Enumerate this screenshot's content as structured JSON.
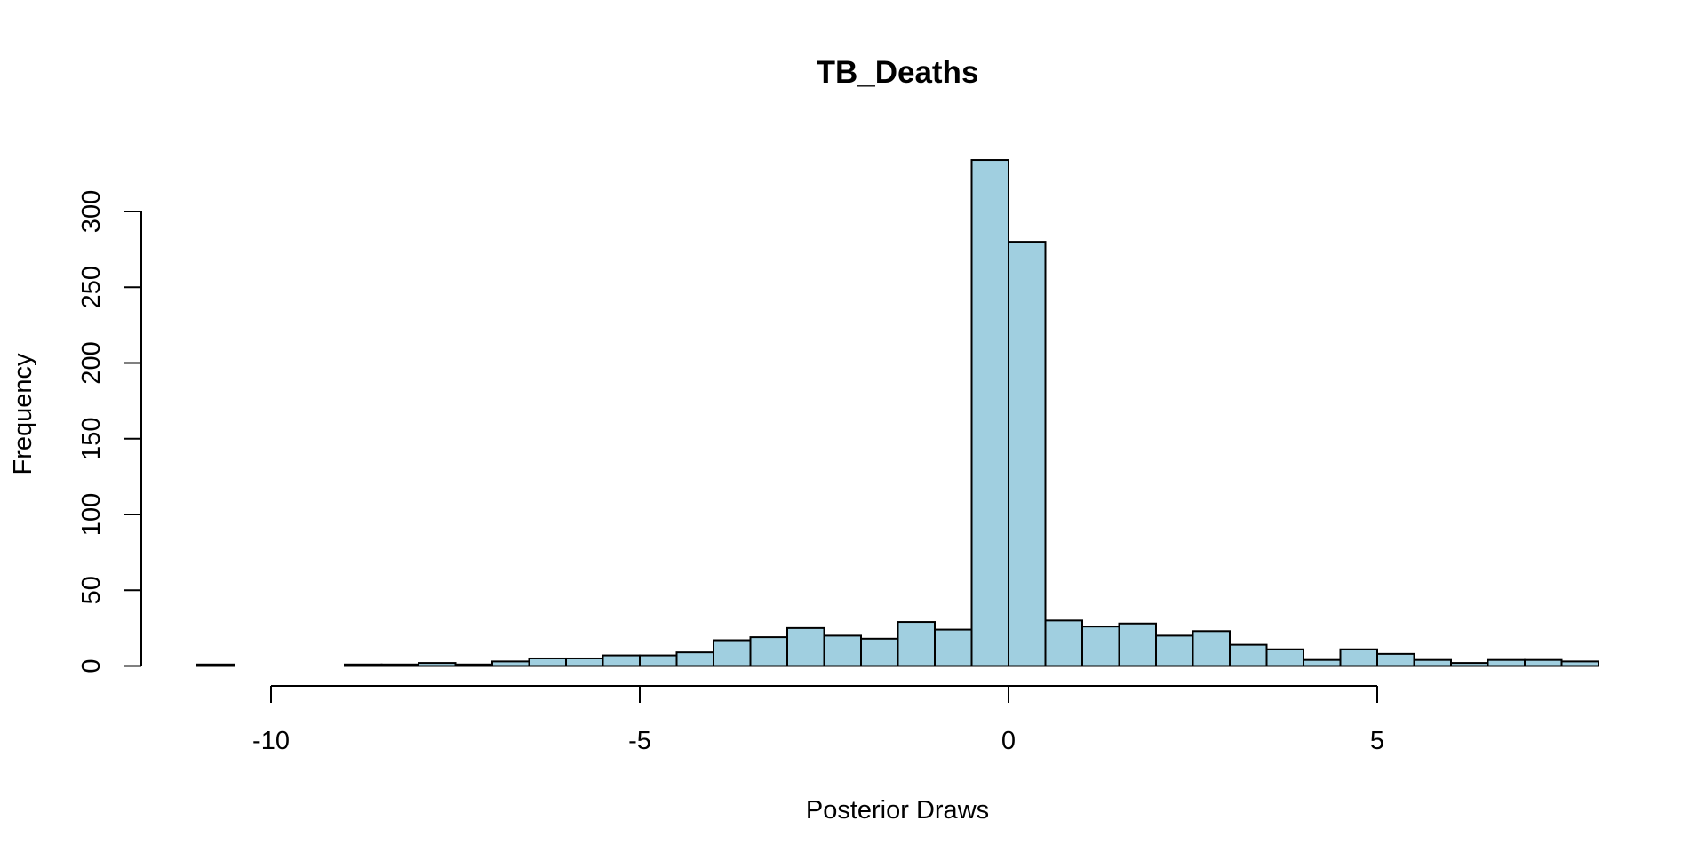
{
  "chart_data": {
    "type": "bar",
    "title": "TB_Deaths",
    "xlabel": "Posterior Draws",
    "ylabel": "Frequency",
    "bin_width": 0.5,
    "x_range": [
      -11,
      8
    ],
    "ylim": [
      0,
      334
    ],
    "x_ticks": [
      -10,
      -5,
      0,
      5
    ],
    "x_tick_labels": [
      "-10",
      "-5",
      "0",
      "5"
    ],
    "y_ticks": [
      0,
      50,
      100,
      150,
      200,
      250,
      300
    ],
    "y_tick_labels": [
      "0",
      "50",
      "100",
      "150",
      "200",
      "250",
      "300"
    ],
    "bin_starts": [
      -11,
      -10.5,
      -10,
      -9.5,
      -9,
      -8.5,
      -8,
      -7.5,
      -7,
      -6.5,
      -6,
      -5.5,
      -5,
      -4.5,
      -4,
      -3.5,
      -3,
      -2.5,
      -2,
      -1.5,
      -1,
      -0.5,
      0,
      0.5,
      1,
      1.5,
      2,
      2.5,
      3,
      3.5,
      4,
      4.5,
      5,
      5.5,
      6,
      6.5,
      7,
      7.5
    ],
    "values": [
      1,
      0,
      0,
      0,
      1,
      1,
      2,
      1,
      3,
      5,
      5,
      7,
      7,
      9,
      17,
      19,
      25,
      20,
      18,
      29,
      24,
      334,
      280,
      30,
      26,
      28,
      20,
      23,
      14,
      11,
      4,
      11,
      8,
      4,
      2,
      4,
      4,
      3
    ],
    "bar_color": "#a0cfe0",
    "edge_color": "#000000",
    "grid": false,
    "legend": "none"
  }
}
